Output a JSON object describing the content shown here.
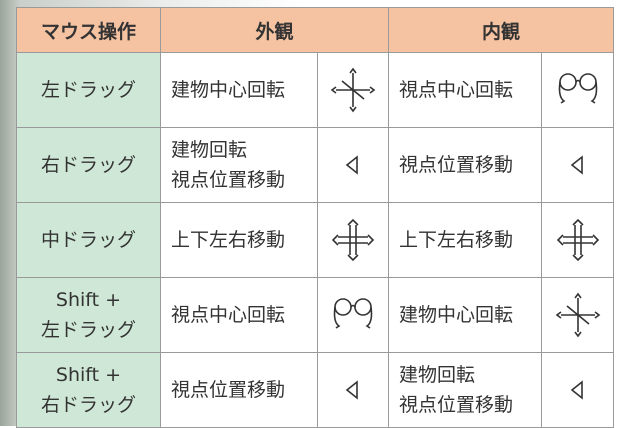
{
  "header": [
    "マウス操作",
    "外観",
    "内観"
  ],
  "rows": [
    {
      "operation": [
        "左ドラッグ"
      ],
      "exterior": [
        "建物中心回転"
      ],
      "interior": [
        "視点中心回転"
      ]
    },
    {
      "operation": [
        "右ドラッグ"
      ],
      "exterior": [
        "建物回転",
        "視点位置移動"
      ],
      "interior": [
        "視点位置移動"
      ]
    },
    {
      "operation": [
        "中ドラッグ"
      ],
      "exterior": [
        "上下左右移動"
      ],
      "interior": [
        "上下左右移動"
      ]
    },
    {
      "operation": [
        "Shift +",
        "左ドラッグ"
      ],
      "exterior": [
        "視点中心回転"
      ],
      "interior": [
        "建物中心回転"
      ]
    },
    {
      "operation": [
        "Shift +",
        "右ドラッグ"
      ],
      "exterior": [
        "視点位置移動"
      ],
      "interior": [
        "建物回転",
        "視点位置移動"
      ]
    }
  ]
}
